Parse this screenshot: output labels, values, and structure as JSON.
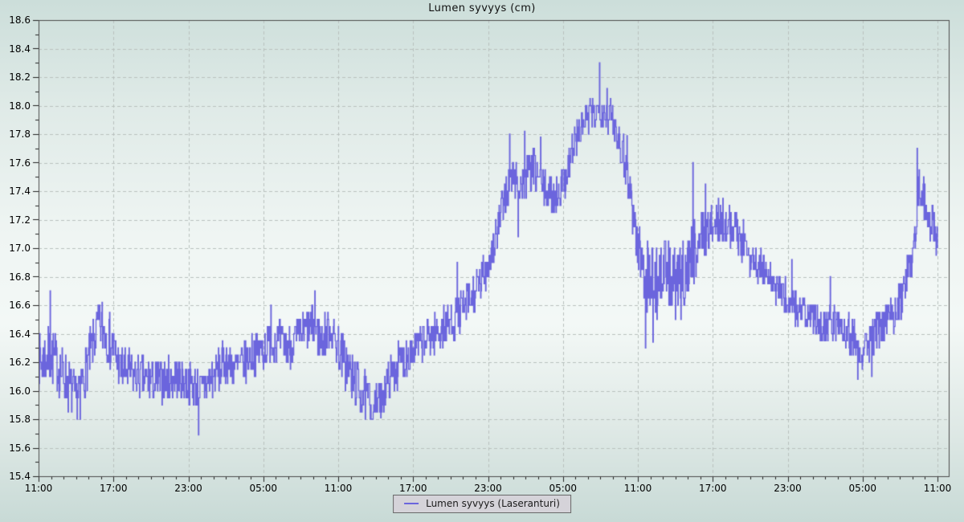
{
  "title": "Lumen syvyys (cm)",
  "legend": {
    "label": "Lumen syvyys (Laseranturi)"
  },
  "colors": {
    "line": "#6b65dd",
    "grid": "#b9c0be",
    "border": "#4a4a4a",
    "tick": "#222222",
    "legend_bg": "#d5d3d9",
    "legend_border": "#686868",
    "bg_top": "#ccdeda",
    "bg_mid": "#f3f8f6",
    "bg_bottom": "#c8dad6"
  },
  "chart_data": {
    "type": "line",
    "title": "Lumen syvyys (cm)",
    "series_name": "Lumen syvyys (Laseranturi)",
    "line_color": "#6b65dd",
    "grid": true,
    "legend_position": "bottom-center",
    "ylim": [
      15.4,
      18.6
    ],
    "y_major_step": 0.2,
    "y_minor_step": 0.1,
    "y_tick_labels": [
      "15.4",
      "15.6",
      "15.8",
      "16.0",
      "16.2",
      "16.4",
      "16.6",
      "16.8",
      "17.0",
      "17.2",
      "17.4",
      "17.6",
      "17.8",
      "18.0",
      "18.2",
      "18.4",
      "18.6"
    ],
    "x_axis_hours": 72.9,
    "x_hours_data": 72,
    "x_major_step_hours": 6,
    "x_minor_step_hours": 1,
    "x_tick_labels": [
      "11:00",
      "17:00",
      "23:00",
      "05:00",
      "11:00",
      "17:00",
      "23:00",
      "05:00",
      "11:00",
      "17:00",
      "23:00",
      "05:00",
      "11:00"
    ],
    "trend_keypoints": [
      [
        0,
        16.2,
        0.2
      ],
      [
        1,
        16.25,
        0.2
      ],
      [
        2,
        16.1,
        0.2
      ],
      [
        3,
        15.95,
        0.17
      ],
      [
        4,
        16.2,
        0.2
      ],
      [
        4.7,
        16.45,
        0.17
      ],
      [
        5.5,
        16.4,
        0.2
      ],
      [
        6.5,
        16.15,
        0.17
      ],
      [
        8,
        16.1,
        0.15
      ],
      [
        9.5,
        16.05,
        0.16
      ],
      [
        11,
        16.1,
        0.15
      ],
      [
        12,
        16.05,
        0.15
      ],
      [
        13,
        16.0,
        0.15
      ],
      [
        14,
        16.1,
        0.16
      ],
      [
        15,
        16.2,
        0.16
      ],
      [
        16,
        16.15,
        0.15
      ],
      [
        17,
        16.25,
        0.15
      ],
      [
        18,
        16.3,
        0.15
      ],
      [
        19,
        16.35,
        0.16
      ],
      [
        20,
        16.3,
        0.15
      ],
      [
        21,
        16.4,
        0.16
      ],
      [
        22,
        16.45,
        0.16
      ],
      [
        22.7,
        16.35,
        0.15
      ],
      [
        23.3,
        16.45,
        0.15
      ],
      [
        24,
        16.3,
        0.17
      ],
      [
        25,
        16.1,
        0.2
      ],
      [
        26,
        15.97,
        0.17
      ],
      [
        27,
        15.9,
        0.13
      ],
      [
        27.6,
        16.0,
        0.15
      ],
      [
        28.5,
        16.15,
        0.15
      ],
      [
        29.5,
        16.25,
        0.15
      ],
      [
        30.5,
        16.32,
        0.15
      ],
      [
        31.5,
        16.38,
        0.15
      ],
      [
        32.5,
        16.45,
        0.15
      ],
      [
        33.5,
        16.52,
        0.15
      ],
      [
        34.3,
        16.6,
        0.15
      ],
      [
        35.2,
        16.72,
        0.15
      ],
      [
        36,
        16.9,
        0.15
      ],
      [
        36.7,
        17.1,
        0.15
      ],
      [
        37.4,
        17.38,
        0.16
      ],
      [
        38,
        17.5,
        0.16
      ],
      [
        38.8,
        17.45,
        0.15
      ],
      [
        39.6,
        17.55,
        0.16
      ],
      [
        40.5,
        17.42,
        0.14
      ],
      [
        41.3,
        17.36,
        0.12
      ],
      [
        42,
        17.45,
        0.14
      ],
      [
        42.8,
        17.7,
        0.15
      ],
      [
        43.6,
        17.88,
        0.13
      ],
      [
        44.4,
        17.95,
        0.13
      ],
      [
        45.2,
        17.97,
        0.13
      ],
      [
        46,
        17.9,
        0.14
      ],
      [
        46.7,
        17.72,
        0.15
      ],
      [
        47.3,
        17.45,
        0.2
      ],
      [
        47.9,
        17.05,
        0.2
      ],
      [
        48.5,
        16.85,
        0.25
      ],
      [
        49.3,
        16.75,
        0.28
      ],
      [
        50.2,
        16.85,
        0.25
      ],
      [
        51.2,
        16.7,
        0.28
      ],
      [
        52.2,
        16.95,
        0.25
      ],
      [
        53.1,
        17.1,
        0.2
      ],
      [
        54,
        17.15,
        0.16
      ],
      [
        55,
        17.2,
        0.15
      ],
      [
        56,
        17.1,
        0.15
      ],
      [
        57,
        16.95,
        0.14
      ],
      [
        58,
        16.85,
        0.13
      ],
      [
        59,
        16.72,
        0.13
      ],
      [
        60,
        16.65,
        0.13
      ],
      [
        61,
        16.55,
        0.13
      ],
      [
        62,
        16.5,
        0.12
      ],
      [
        63,
        16.45,
        0.12
      ],
      [
        64,
        16.5,
        0.13
      ],
      [
        65,
        16.4,
        0.15
      ],
      [
        65.8,
        16.3,
        0.16
      ],
      [
        66.6,
        16.35,
        0.15
      ],
      [
        67.5,
        16.45,
        0.13
      ],
      [
        68.5,
        16.55,
        0.13
      ],
      [
        69.3,
        16.7,
        0.15
      ],
      [
        70,
        17.0,
        0.2
      ],
      [
        70.45,
        17.4,
        0.17
      ],
      [
        70.9,
        17.35,
        0.15
      ],
      [
        71.4,
        17.2,
        0.15
      ],
      [
        72,
        17.05,
        0.16
      ]
    ],
    "noise_spikes": [
      [
        0.9,
        16.7
      ],
      [
        3.3,
        15.8
      ],
      [
        5.1,
        16.62
      ],
      [
        12.8,
        15.69
      ],
      [
        18.6,
        16.6
      ],
      [
        22.1,
        16.7
      ],
      [
        26.7,
        15.8
      ],
      [
        27.4,
        15.81
      ],
      [
        33.5,
        16.9
      ],
      [
        36.5,
        16.95
      ],
      [
        37.7,
        17.8
      ],
      [
        38.4,
        17.08
      ],
      [
        38.9,
        17.82
      ],
      [
        40.2,
        17.78
      ],
      [
        44.9,
        18.3
      ],
      [
        45.5,
        18.12
      ],
      [
        47.1,
        17.79
      ],
      [
        48.6,
        16.3
      ],
      [
        49.2,
        16.34
      ],
      [
        52.4,
        17.6
      ],
      [
        53.4,
        17.45
      ],
      [
        60.3,
        16.92
      ],
      [
        63.4,
        16.8
      ],
      [
        65.6,
        16.08
      ],
      [
        66.7,
        16.1
      ],
      [
        70.35,
        17.7
      ]
    ],
    "sampling": {
      "step_hours": 0.04,
      "quantize": 0.05,
      "seed": 7
    }
  }
}
